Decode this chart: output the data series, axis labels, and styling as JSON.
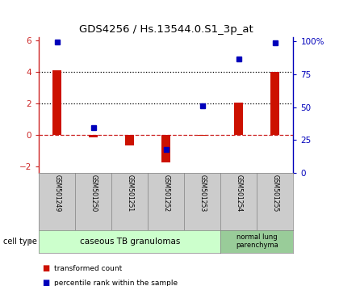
{
  "title": "GDS4256 / Hs.13544.0.S1_3p_at",
  "samples": [
    "GSM501249",
    "GSM501250",
    "GSM501251",
    "GSM501252",
    "GSM501253",
    "GSM501254",
    "GSM501255"
  ],
  "red_values": [
    4.1,
    -0.12,
    -0.65,
    -1.75,
    -0.04,
    2.05,
    4.0
  ],
  "blue_marker_left_ycoords": [
    5.88,
    0.48,
    null,
    -0.9,
    1.85,
    4.82,
    5.82
  ],
  "ylim_left": [
    -2.4,
    6.2
  ],
  "ylim_right": [
    0,
    103
  ],
  "yticks_left": [
    -2,
    0,
    2,
    4,
    6
  ],
  "yticks_right_vals": [
    0,
    25,
    50,
    75,
    100
  ],
  "yticks_right_labels": [
    "0",
    "25",
    "50",
    "75",
    "100%"
  ],
  "hline_y": [
    0,
    2,
    4
  ],
  "hline_styles": [
    "dashed",
    "dotted",
    "dotted"
  ],
  "hline_colors": [
    "#cc2222",
    "black",
    "black"
  ],
  "group1_label": "caseous TB granulomas",
  "group1_samples": [
    0,
    1,
    2,
    3,
    4
  ],
  "group2_label": "normal lung\nparenchyma",
  "group2_samples": [
    5,
    6
  ],
  "group1_color": "#ccffcc",
  "group2_color": "#99cc99",
  "sample_box_color": "#cccccc",
  "red_bar_color": "#cc1100",
  "blue_marker_color": "#0000bb",
  "bar_width": 0.25,
  "cell_type_label": "cell type",
  "legend_red": "transformed count",
  "legend_blue": "percentile rank within the sample",
  "background_color": "#ffffff",
  "left_tick_color": "#cc2222",
  "right_tick_color": "#0000bb"
}
